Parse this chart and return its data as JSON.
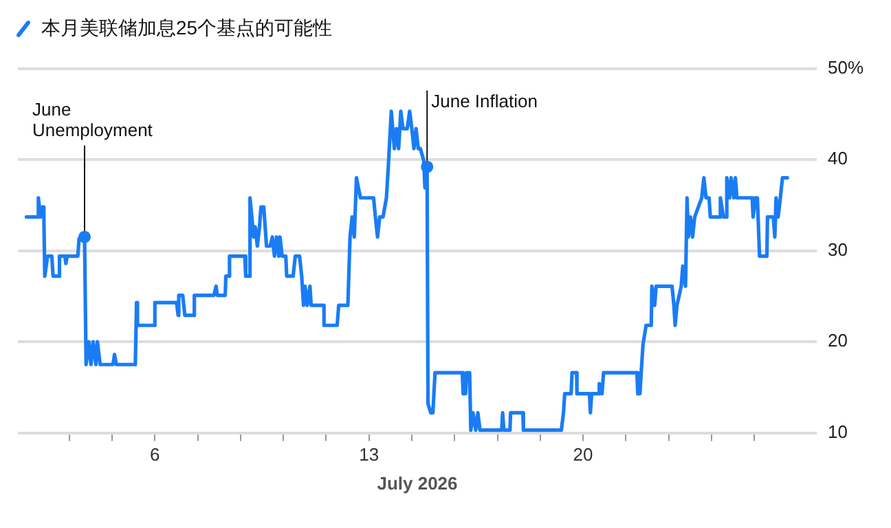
{
  "chart_data": {
    "type": "line",
    "title": "本月美联储加息25个基点的可能性",
    "xlabel": "July 2026",
    "xlim": [
      1.52,
      27.64
    ],
    "xticks": [
      {
        "value": 3.2,
        "label": null
      },
      {
        "value": 4.6,
        "label": null
      },
      6,
      {
        "value": 7.4,
        "label": null
      },
      {
        "value": 8.8,
        "label": null
      },
      {
        "value": 10.2,
        "label": null
      },
      {
        "value": 11.6,
        "label": null
      },
      13,
      {
        "value": 14.4,
        "label": null
      },
      {
        "value": 15.8,
        "label": null
      },
      {
        "value": 17.2,
        "label": null
      },
      {
        "value": 18.6,
        "label": null
      },
      20,
      {
        "value": 21.4,
        "label": null
      },
      {
        "value": 22.8,
        "label": null
      },
      {
        "value": 24.2,
        "label": null
      },
      {
        "value": 25.6,
        "label": null
      }
    ],
    "ylim": [
      10,
      50
    ],
    "yticks": [
      10,
      20,
      30,
      40,
      {
        "value": 50,
        "label": "50%"
      }
    ],
    "grid": "y",
    "legend": false,
    "marker": "none",
    "line_style": "solid",
    "series": [
      {
        "color": "#1a7cf5",
        "x": [
          1.8,
          2.19,
          2.19,
          2.26,
          2.33,
          2.37,
          2.4,
          2.49,
          2.63,
          2.67,
          2.88,
          2.88,
          3.06,
          3.09,
          3.13,
          3.48,
          3.52,
          3.63,
          3.7,
          3.75,
          3.84,
          3.91,
          3.98,
          4.07,
          4.12,
          4.21,
          4.63,
          4.68,
          4.74,
          5.36,
          5.4,
          5.43,
          6.0,
          6.0,
          6.71,
          6.76,
          6.78,
          6.91,
          6.98,
          7.29,
          7.29,
          7.93,
          8.0,
          8.04,
          8.3,
          8.32,
          8.44,
          8.44,
          8.94,
          8.97,
          9.08,
          9.11,
          9.23,
          9.28,
          9.35,
          9.42,
          9.47,
          9.56,
          9.65,
          9.77,
          9.84,
          9.91,
          9.98,
          10.05,
          10.09,
          10.16,
          10.28,
          10.31,
          10.52,
          10.59,
          10.73,
          10.8,
          10.86,
          10.91,
          10.98,
          11.07,
          11.11,
          11.53,
          11.53,
          11.96,
          12.01,
          12.31,
          12.38,
          12.45,
          12.52,
          12.59,
          12.72,
          13.15,
          13.21,
          13.28,
          13.35,
          13.46,
          13.57,
          13.63,
          13.73,
          13.83,
          13.9,
          13.97,
          14.04,
          14.11,
          14.25,
          14.33,
          14.4,
          14.47,
          14.54,
          14.61,
          14.68,
          14.79,
          14.83,
          14.9,
          14.93,
          15.02,
          15.09,
          15.16,
          16.05,
          16.08,
          16.16,
          16.19,
          16.29,
          16.33,
          16.4,
          16.49,
          16.56,
          16.63,
          17.34,
          17.37,
          17.41,
          17.61,
          17.63,
          18.03,
          18.05,
          19.29,
          19.36,
          19.4,
          19.61,
          19.64,
          19.79,
          19.8,
          20.21,
          20.24,
          20.28,
          20.5,
          20.53,
          20.62,
          20.67,
          21.76,
          21.79,
          21.86,
          21.9,
          21.96,
          22.06,
          22.23,
          22.25,
          22.34,
          22.39,
          22.91,
          22.97,
          23.01,
          23.07,
          23.21,
          23.26,
          23.35,
          23.4,
          23.44,
          23.51,
          23.58,
          23.65,
          23.88,
          23.95,
          24.02,
          24.12,
          24.16,
          24.45,
          24.49,
          24.59,
          24.68,
          24.7,
          24.79,
          24.84,
          24.93,
          24.98,
          25.03,
          25.53,
          25.56,
          25.64,
          25.7,
          25.77,
          26.01,
          26.03,
          26.22,
          26.27,
          26.31,
          26.38,
          26.45,
          26.52,
          26.68
        ],
        "values": [
          33.7,
          33.7,
          35.8,
          33.7,
          34.8,
          33.7,
          27.2,
          29.4,
          29.4,
          27.2,
          27.2,
          29.4,
          29.4,
          28.6,
          29.4,
          29.4,
          31.3,
          31.8,
          31.5,
          17.5,
          20.0,
          17.5,
          20.0,
          17.5,
          20.0,
          17.5,
          17.5,
          18.6,
          17.5,
          17.5,
          24.3,
          21.8,
          21.8,
          24.3,
          24.3,
          22.9,
          25.1,
          25.1,
          22.9,
          22.9,
          25.1,
          25.1,
          26.1,
          25.1,
          25.1,
          27.2,
          27.2,
          29.4,
          29.4,
          27.2,
          27.2,
          35.8,
          31.5,
          32.6,
          30.5,
          32.6,
          34.8,
          34.8,
          30.5,
          30.5,
          31.5,
          29.4,
          31.5,
          29.4,
          31.5,
          29.4,
          29.4,
          27.2,
          27.2,
          29.4,
          29.4,
          27.2,
          24.0,
          26.1,
          24.0,
          26.1,
          24.0,
          24.0,
          21.8,
          21.8,
          24.0,
          24.0,
          31.5,
          33.7,
          31.5,
          38.0,
          35.8,
          35.8,
          33.7,
          31.5,
          33.7,
          33.7,
          35.8,
          39.1,
          45.3,
          41.2,
          43.4,
          41.2,
          45.3,
          43.4,
          43.4,
          45.3,
          43.4,
          41.2,
          43.4,
          41.2,
          41.2,
          39.9,
          36.9,
          39.2,
          13.2,
          12.2,
          12.2,
          16.6,
          16.6,
          14.3,
          14.3,
          16.6,
          16.6,
          10.3,
          12.2,
          10.3,
          12.2,
          10.3,
          10.3,
          12.2,
          10.3,
          10.3,
          12.2,
          12.2,
          10.3,
          10.3,
          12.2,
          14.3,
          14.3,
          16.6,
          16.6,
          14.3,
          14.3,
          12.2,
          14.3,
          14.3,
          15.4,
          14.3,
          16.6,
          16.6,
          14.3,
          14.3,
          16.6,
          19.7,
          21.8,
          21.8,
          26.1,
          24.0,
          26.1,
          26.1,
          24.0,
          21.8,
          24.0,
          26.1,
          28.3,
          26.1,
          35.8,
          31.5,
          33.7,
          31.5,
          33.7,
          35.8,
          38.0,
          35.8,
          35.8,
          33.7,
          33.7,
          35.8,
          33.7,
          33.7,
          38.0,
          35.8,
          38.0,
          35.8,
          38.0,
          35.8,
          35.8,
          33.7,
          35.8,
          35.8,
          29.4,
          29.4,
          33.7,
          33.7,
          31.5,
          35.8,
          33.7,
          35.8,
          38.0,
          38.0
        ]
      }
    ],
    "annotations": [
      {
        "text": "June Unemployment",
        "x": 3.7,
        "y": 31.5
      },
      {
        "text": "June Inflation",
        "x": 14.9,
        "y": 39.2
      }
    ]
  }
}
